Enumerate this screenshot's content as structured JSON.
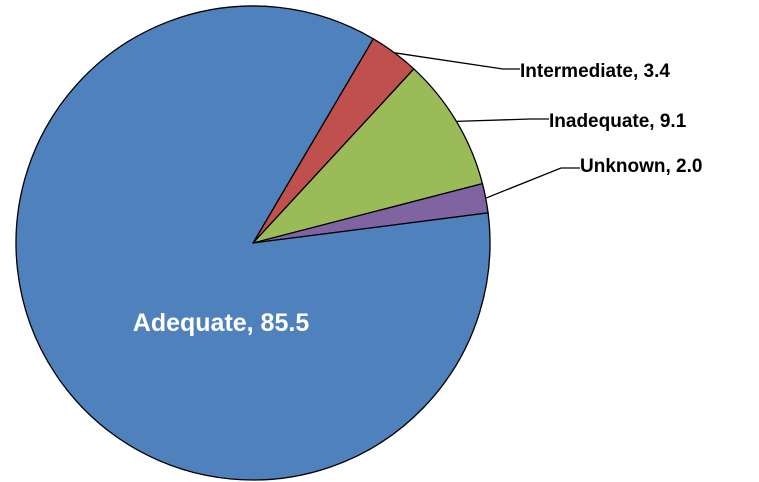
{
  "chart_data": {
    "type": "pie",
    "title": "",
    "slices": [
      {
        "label": "Adequate",
        "value": 85.5,
        "color": "#4F81BD",
        "text": "Adequate, 85.5"
      },
      {
        "label": "Intermediate",
        "value": 3.4,
        "color": "#C0504D",
        "text": "Intermediate, 3.4"
      },
      {
        "label": "Inadequate",
        "value": 9.1,
        "color": "#9BBB59",
        "text": "Inadequate, 9.1"
      },
      {
        "label": "Unknown",
        "value": 2.0,
        "color": "#8064A2",
        "text": "Unknown, 2.0"
      }
    ],
    "legend": "none"
  }
}
